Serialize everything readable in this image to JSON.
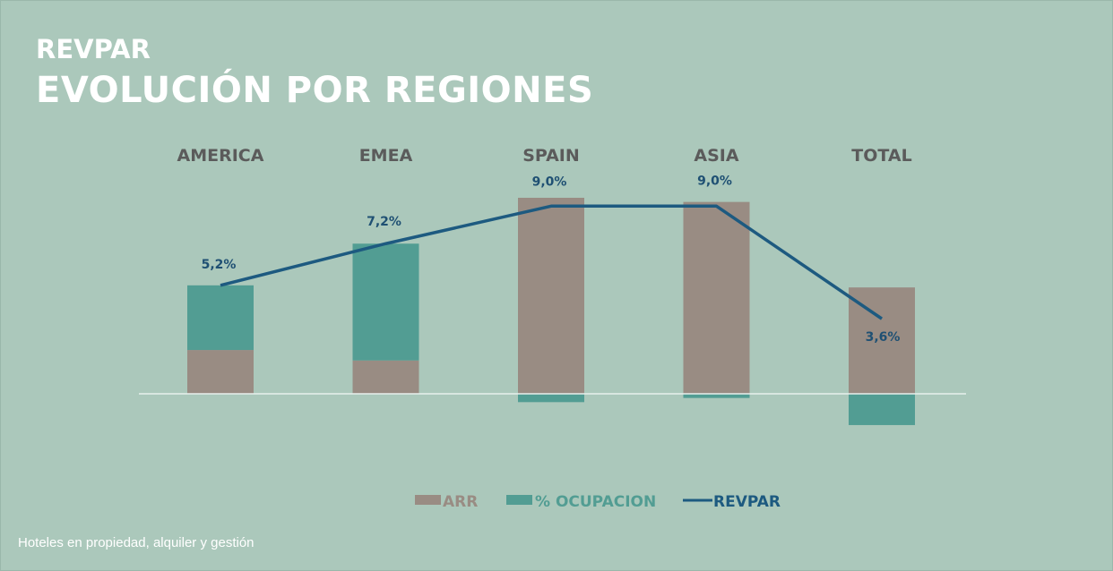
{
  "header": {
    "subtitle": "REVPAR",
    "title": "EVOLUCIÓN POR REGIONES"
  },
  "footer": "Hoteles en propiedad, alquiler y gestión",
  "colors": {
    "arr": "#998c83",
    "ocupacion": "#529d93",
    "revpar": "#1d5a80",
    "baseline": "#e8efec"
  },
  "chart_data": {
    "type": "bar",
    "stacked": true,
    "categories": [
      "AMERICA",
      "EMEA",
      "SPAIN",
      "ASIA",
      "TOTAL"
    ],
    "series": [
      {
        "name": "ARR",
        "type": "bar",
        "values": [
          2.1,
          1.6,
          9.4,
          9.2,
          5.1
        ]
      },
      {
        "name": "% OCUPACION",
        "type": "bar",
        "values": [
          3.1,
          5.6,
          -0.4,
          -0.2,
          -1.5
        ]
      },
      {
        "name": "REVPAR",
        "type": "line",
        "values": [
          5.2,
          7.2,
          9.0,
          9.0,
          3.6
        ]
      }
    ],
    "data_labels": [
      "5,2%",
      "7,2%",
      "9,0%",
      "9,0%",
      "3,6%"
    ],
    "legend": {
      "placement": "bottom",
      "entries": [
        "ARR",
        "% OCUPACION",
        "REVPAR"
      ]
    },
    "grid": false,
    "unit": "%"
  }
}
